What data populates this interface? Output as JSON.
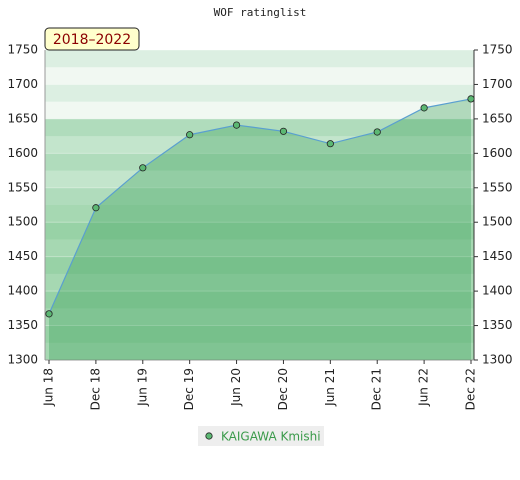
{
  "chart_data": {
    "type": "area",
    "title": "WOF ratinglist",
    "annotation": "2018–2022",
    "categories": [
      "Jun 18",
      "Dec 18",
      "Jun 19",
      "Dec 19",
      "Jun 20",
      "Dec 20",
      "Jun 21",
      "Dec 21",
      "Jun 22",
      "Dec 22"
    ],
    "series": [
      {
        "name": "KAIGAWA Kmishi",
        "color": "#5a9fd0",
        "values": [
          1367,
          1521,
          1579,
          1627,
          1641,
          1632,
          1614,
          1631,
          1666,
          1679
        ]
      }
    ],
    "ylim": [
      1300,
      1750
    ],
    "yticks": [
      1300,
      1350,
      1400,
      1450,
      1500,
      1550,
      1600,
      1650,
      1700,
      1750
    ],
    "grid": true
  }
}
